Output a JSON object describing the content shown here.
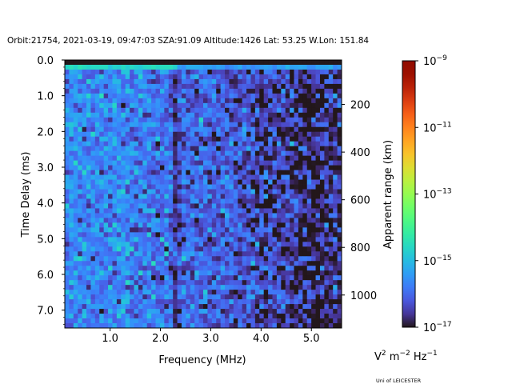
{
  "chart_data": {
    "type": "heatmap",
    "title": "Orbit:21754, 2021-03-19, 09:47:03 SZA:91.09 Altitude:1426 Lat: 53.25 W.Lon: 151.84",
    "xlabel": "Frequency (MHz)",
    "ylabel": "Time Delay (ms)",
    "y2label": "Apparent range (km)",
    "colorbar_label": {
      "base": "V",
      "sup1": "2",
      "m": " m",
      "sup2": "−2",
      "hz": " Hz",
      "sup3": "−1"
    },
    "footer": "Uni of LEICESTER",
    "xlim": [
      0.1,
      5.6
    ],
    "ylim": [
      0.0,
      7.5
    ],
    "y_inverted": true,
    "x_ticks": [
      {
        "v": 1.0,
        "label": "1.0"
      },
      {
        "v": 2.0,
        "label": "2.0"
      },
      {
        "v": 3.0,
        "label": "3.0"
      },
      {
        "v": 4.0,
        "label": "4.0"
      },
      {
        "v": 5.0,
        "label": "5.0"
      }
    ],
    "y_ticks": [
      {
        "v": 0.0,
        "label": "0.0"
      },
      {
        "v": 1.0,
        "label": "1.0"
      },
      {
        "v": 2.0,
        "label": "2.0"
      },
      {
        "v": 3.0,
        "label": "3.0"
      },
      {
        "v": 4.0,
        "label": "4.0"
      },
      {
        "v": 5.0,
        "label": "5.0"
      },
      {
        "v": 6.0,
        "label": "6.0"
      },
      {
        "v": 7.0,
        "label": "7.0"
      }
    ],
    "y2_ticks": [
      {
        "v": 200,
        "label": "200"
      },
      {
        "v": 400,
        "label": "400"
      },
      {
        "v": 600,
        "label": "600"
      },
      {
        "v": 800,
        "label": "800"
      },
      {
        "v": 1000,
        "label": "1000"
      }
    ],
    "y2_km_per_ms": 150,
    "colorbar": {
      "log_range": [
        -17,
        -9
      ],
      "colormap": "turbo",
      "ticks": [
        {
          "v": -9,
          "base": "10",
          "exp": "−9"
        },
        {
          "v": -11,
          "base": "10",
          "exp": "−11"
        },
        {
          "v": -13,
          "base": "10",
          "exp": "−13"
        },
        {
          "v": -15,
          "base": "10",
          "exp": "−15"
        },
        {
          "v": -17,
          "base": "10",
          "exp": "−17"
        }
      ]
    },
    "grid": {
      "n_freq": 64,
      "n_time": 56
    },
    "frequency_profile_log10": {
      "freq": [
        0.1,
        0.25,
        0.5,
        1.0,
        1.28,
        1.32,
        1.36,
        2.2,
        2.33,
        2.4,
        3.0,
        3.8,
        3.9,
        4.5,
        5.0,
        5.6
      ],
      "value": [
        -15.9,
        -15.5,
        -15.7,
        -15.7,
        -15.6,
        -15.0,
        -15.8,
        -15.9,
        -16.9,
        -16.0,
        -16.1,
        -16.3,
        -16.5,
        -16.6,
        -16.8,
        -16.7
      ]
    },
    "top_echo_log10": {
      "time_range": [
        0.13,
        0.26
      ],
      "low_freq_value": -14.6,
      "high_freq_value": -15.4,
      "split_freq": 2.3
    },
    "noise_std_log10": 0.45
  }
}
